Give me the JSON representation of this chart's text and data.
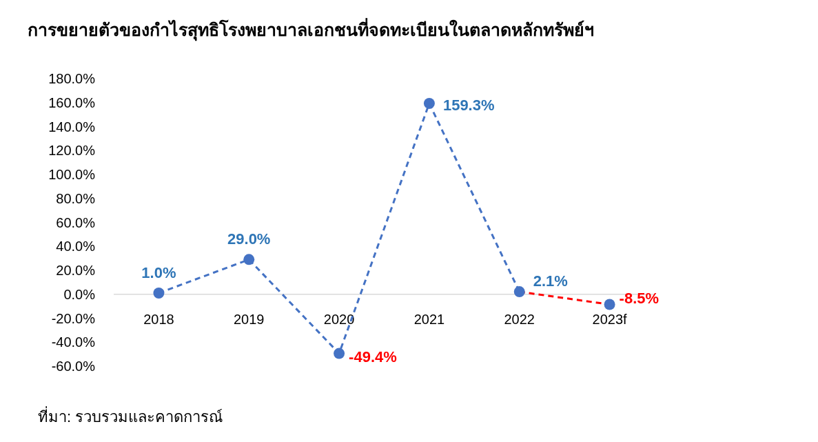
{
  "chart_data": {
    "type": "line",
    "title": "การขยายตัวของกำไรสุทธิโรงพยาบาลเอกชนที่จดทะเบียนในตลาดหลักทรัพย์ฯ",
    "categories": [
      "2018",
      "2019",
      "2020",
      "2021",
      "2022",
      "2023f"
    ],
    "series": [
      {
        "type": "line",
        "color": "#4472c4",
        "line_style": "dashed",
        "marker": "none",
        "values": [
          1.0,
          29.0,
          -49.4,
          159.3,
          2.1,
          null
        ]
      },
      {
        "type": "line",
        "color": "#ff0000",
        "line_style": "dashed",
        "marker": "none",
        "values": [
          null,
          null,
          null,
          null,
          2.1,
          -8.5
        ]
      },
      {
        "type": "scatter",
        "color": "#4472c4",
        "marker": "circle",
        "values": [
          1.0,
          29.0,
          -49.4,
          159.3,
          2.1,
          -8.5
        ],
        "value_labels": [
          "1.0%",
          "29.0%",
          "-49.4%",
          "159.3%",
          "2.1%",
          "-8.5%"
        ]
      }
    ],
    "ylim": [
      -60,
      180
    ],
    "yticks": [
      {
        "value": -60,
        "label": "-60.0%"
      },
      {
        "value": -40,
        "label": "-40.0%"
      },
      {
        "value": -20,
        "label": "-20.0%"
      },
      {
        "value": 0,
        "label": "0.0%"
      },
      {
        "value": 20,
        "label": "20.0%"
      },
      {
        "value": 40,
        "label": "40.0%"
      },
      {
        "value": 60,
        "label": "60.0%"
      },
      {
        "value": 80,
        "label": "80.0%"
      },
      {
        "value": 100,
        "label": "100.0%"
      },
      {
        "value": 120,
        "label": "120.0%"
      },
      {
        "value": 140,
        "label": "140.0%"
      },
      {
        "value": 160,
        "label": "160.0%"
      },
      {
        "value": 180,
        "label": "180.0%"
      }
    ],
    "grid": false,
    "annotations": [
      "ที่มา: รวบรวมและคาดการณ์"
    ]
  }
}
